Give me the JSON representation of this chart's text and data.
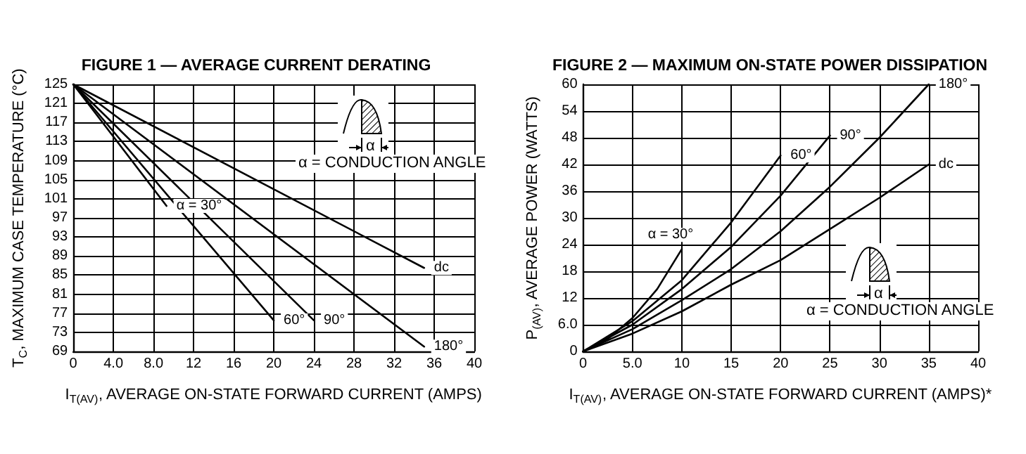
{
  "chart_data": [
    {
      "type": "line",
      "title": "FIGURE 1 — AVERAGE CURRENT DERATING",
      "xlabel": "I$_{T(AV)}$, AVERAGE ON-STATE FORWARD CURRENT (AMPS)",
      "ylabel": "T$_{C}$, MAXIMUM CASE TEMPERATURE (°C)",
      "annotations": [
        "α",
        "α = CONDUCTION ANGLE"
      ],
      "xlim": [
        0,
        40
      ],
      "xticks": [
        0,
        {
          "value": 4,
          "label": "4.0"
        },
        {
          "value": 8,
          "label": "8.0"
        },
        12,
        16,
        20,
        24,
        28,
        32,
        36,
        40
      ],
      "ylim": [
        69,
        125
      ],
      "yticks": [
        69,
        73,
        77,
        81,
        85,
        89,
        93,
        97,
        101,
        105,
        109,
        113,
        117,
        121,
        125
      ],
      "grid": true,
      "legend": false,
      "marker": "none",
      "line_style": "solid",
      "series": [
        {
          "name": "α = 30°",
          "color": "#000000",
          "x": [
            0,
            9.3
          ],
          "values": [
            125,
            99.5
          ]
        },
        {
          "name": "60°",
          "color": "#000000",
          "x": [
            0,
            20
          ],
          "values": [
            125,
            75.5
          ]
        },
        {
          "name": "90°",
          "color": "#000000",
          "x": [
            0,
            24
          ],
          "values": [
            125,
            75.5
          ]
        },
        {
          "name": "180°",
          "color": "#000000",
          "x": [
            0,
            35
          ],
          "values": [
            125,
            70
          ]
        },
        {
          "name": "dc",
          "color": "#000000",
          "x": [
            0,
            35
          ],
          "values": [
            125,
            86.5
          ]
        }
      ]
    },
    {
      "type": "line",
      "title": "FIGURE 2 — MAXIMUM ON-STATE POWER DISSIPATION",
      "xlabel": "I$_{T(AV)}$, AVERAGE ON-STATE FORWARD CURRENT (AMPS)*",
      "ylabel": "P$_{(AV)}$, AVERAGE POWER (WATTS)",
      "annotations": [
        "α",
        "α = CONDUCTION ANGLE"
      ],
      "xlim": [
        0,
        40
      ],
      "xticks": [
        0,
        {
          "value": 5,
          "label": "5.0"
        },
        10,
        15,
        20,
        25,
        30,
        35,
        40
      ],
      "ylim": [
        0,
        60
      ],
      "yticks": [
        0,
        {
          "value": 6,
          "label": "6.0"
        },
        12,
        18,
        24,
        30,
        36,
        42,
        48,
        54,
        60
      ],
      "grid": true,
      "legend": false,
      "marker": "none",
      "line_style": "solid",
      "series": [
        {
          "name": "α = 30°",
          "color": "#000000",
          "x": [
            0,
            2.5,
            5,
            7.5,
            10
          ],
          "values": [
            0,
            2.8,
            7.5,
            14,
            23
          ]
        },
        {
          "name": "60°",
          "color": "#000000",
          "x": [
            0,
            5,
            10,
            15,
            20
          ],
          "values": [
            0,
            6.8,
            16,
            29,
            44
          ]
        },
        {
          "name": "90°",
          "color": "#000000",
          "x": [
            0,
            5,
            10,
            15,
            20,
            25
          ],
          "values": [
            0,
            6,
            14,
            23.5,
            35,
            48.5
          ]
        },
        {
          "name": "180°",
          "color": "#000000",
          "x": [
            0,
            5,
            10,
            15,
            20,
            25,
            30,
            35
          ],
          "values": [
            0,
            5,
            11.5,
            18.5,
            27,
            37,
            48,
            60
          ]
        },
        {
          "name": "dc",
          "color": "#000000",
          "x": [
            0,
            5,
            10,
            15,
            20,
            25,
            30,
            35
          ],
          "values": [
            0,
            4,
            9,
            15,
            20.5,
            27.5,
            34.5,
            42
          ]
        }
      ]
    }
  ]
}
